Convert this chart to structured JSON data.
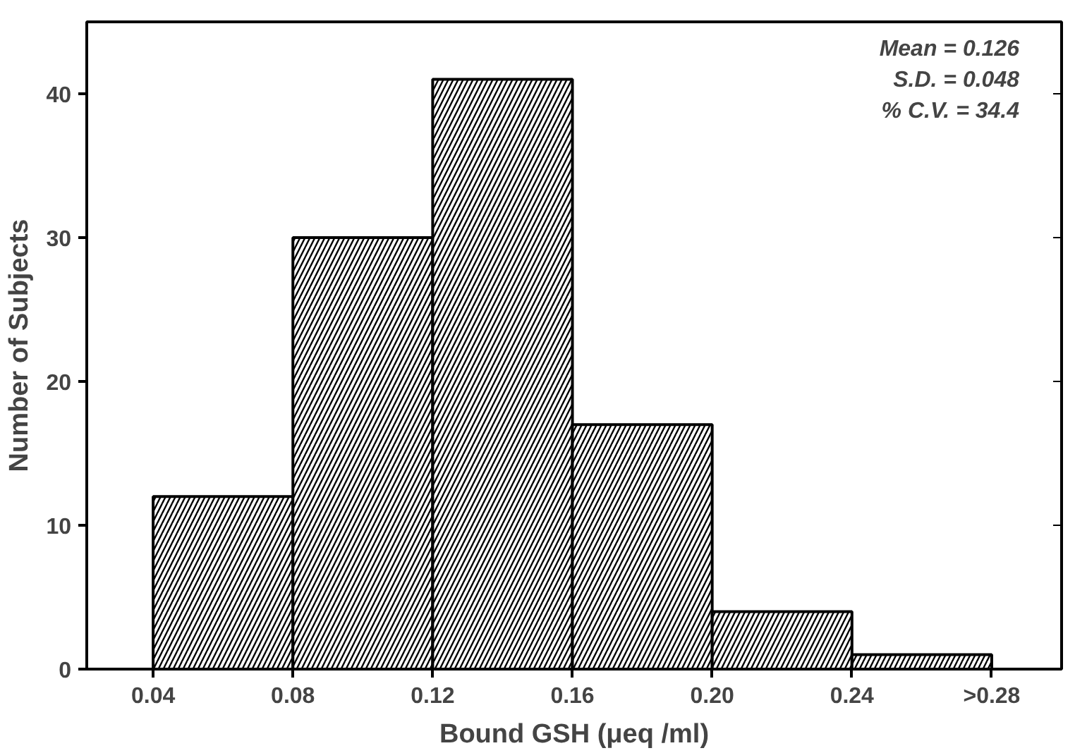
{
  "chart_data": {
    "type": "histogram",
    "xlabel": "Bound GSH (μeq /ml)",
    "ylabel": "Number of Subjects",
    "bins": [
      0.04,
      0.08,
      0.12,
      0.16,
      0.2,
      0.24,
      0.28
    ],
    "values": [
      12,
      30,
      41,
      17,
      4,
      1
    ],
    "color": "#ffffff",
    "xlim": [
      0.021,
      0.3
    ],
    "ylim": [
      0,
      45
    ],
    "xticks": [
      0.04,
      0.08,
      0.12,
      0.16,
      {
        "value": 0.2,
        "label": "0.20"
      },
      0.24,
      {
        "value": 0.28,
        "label": ">0.28"
      }
    ],
    "yticks": [
      0,
      10,
      20,
      30,
      40
    ],
    "grid": false,
    "annotations": [
      "Mean = 0.126",
      "S.D. = 0.048",
      "% C.V. = 34.4"
    ]
  }
}
